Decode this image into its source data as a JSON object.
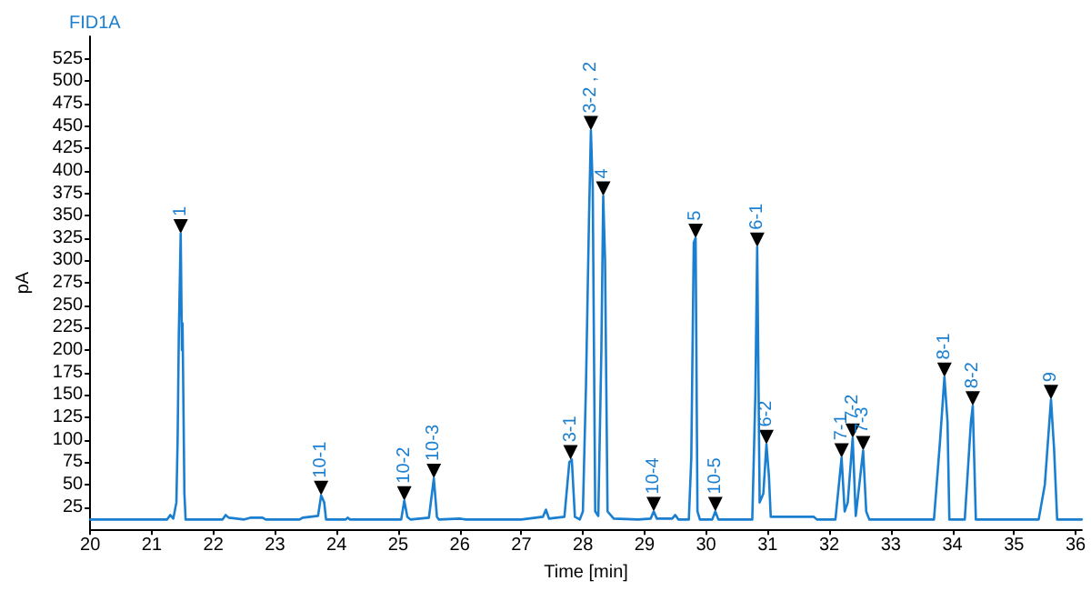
{
  "chart_data": {
    "type": "line",
    "title": "FID1A",
    "xlabel": "Time [min]",
    "ylabel": "pA",
    "xlim": [
      20,
      36.1
    ],
    "xticks": [
      20,
      21,
      22,
      23,
      24,
      25,
      26,
      27,
      28,
      29,
      30,
      31,
      32,
      33,
      34,
      35,
      36
    ],
    "ylim": [
      0,
      550
    ],
    "yticks": [
      25,
      50,
      75,
      100,
      125,
      150,
      175,
      200,
      225,
      250,
      275,
      300,
      325,
      350,
      375,
      400,
      425,
      450,
      475,
      500,
      525
    ],
    "grid": false,
    "marker": "none",
    "line_style": "solid",
    "series": [
      {
        "type": "scatter",
        "color": "#000000",
        "marker": "triangle",
        "x": [
          21.47,
          23.75,
          25.1,
          25.58,
          27.8,
          28.13,
          28.33,
          29.15,
          29.83,
          30.15,
          30.83,
          30.98,
          32.2,
          32.38,
          32.55,
          33.87,
          34.33,
          35.6
        ],
        "values": [
          338,
          46,
          40,
          65,
          86,
          453,
          380,
          28,
          333,
          28,
          323,
          103,
          88,
          110,
          96,
          178,
          146,
          153
        ]
      },
      {
        "color": "#1a7fd0",
        "x": [
          20,
          21.25,
          21.3,
          21.35,
          21.4,
          21.42,
          21.44,
          21.47,
          21.49,
          21.5,
          21.53,
          21.55,
          22.15,
          22.2,
          22.25,
          22.5,
          22.6,
          22.8,
          22.85,
          23.4,
          23.45,
          23.7,
          23.75,
          23.8,
          23.83,
          24.15,
          24.18,
          24.22,
          25.05,
          25.1,
          25.15,
          25.2,
          25.5,
          25.58,
          25.63,
          25.66,
          26.0,
          26.1,
          27.0,
          27.35,
          27.4,
          27.45,
          27.7,
          27.78,
          27.82,
          27.87,
          27.95,
          28.0,
          28.05,
          28.1,
          28.13,
          28.16,
          28.2,
          28.25,
          28.3,
          28.33,
          28.36,
          28.4,
          28.5,
          28.9,
          29.1,
          29.15,
          29.2,
          29.45,
          29.5,
          29.55,
          29.72,
          29.76,
          29.8,
          29.83,
          29.86,
          29.9,
          30.1,
          30.15,
          30.2,
          30.75,
          30.8,
          30.83,
          30.87,
          30.93,
          30.98,
          31.02,
          31.05,
          31.75,
          31.8,
          32.1,
          32.2,
          32.25,
          32.3,
          32.38,
          32.43,
          32.48,
          32.55,
          32.6,
          32.65,
          33.7,
          33.8,
          33.87,
          33.92,
          33.95,
          34.2,
          34.3,
          34.33,
          34.38,
          35.4,
          35.5,
          35.6,
          35.65,
          35.7,
          36.1
        ],
        "values": [
          11,
          11,
          16,
          12,
          30,
          100,
          220,
          330,
          200,
          230,
          40,
          11,
          11,
          16,
          13,
          11,
          13,
          13,
          11,
          11,
          13,
          15,
          38,
          30,
          11,
          11,
          13,
          11,
          11,
          32,
          14,
          11,
          13,
          57,
          14,
          11,
          12,
          11,
          11,
          14,
          22,
          12,
          14,
          75,
          78,
          14,
          11,
          20,
          160,
          350,
          445,
          380,
          20,
          15,
          200,
          372,
          300,
          20,
          12,
          11,
          12,
          20,
          12,
          12,
          16,
          11,
          11,
          80,
          320,
          325,
          20,
          11,
          11,
          20,
          11,
          11,
          150,
          315,
          30,
          40,
          95,
          60,
          14,
          14,
          11,
          11,
          80,
          20,
          30,
          102,
          15,
          45,
          88,
          20,
          11,
          11,
          100,
          170,
          120,
          11,
          11,
          120,
          138,
          11,
          11,
          50,
          145,
          90,
          11,
          11
        ]
      }
    ],
    "annotations": [
      {
        "text": "1",
        "x": 21.47,
        "y": 330
      },
      {
        "text": "10-1",
        "x": 23.75,
        "y": 38
      },
      {
        "text": "10-2",
        "x": 25.1,
        "y": 32
      },
      {
        "text": "10-3",
        "x": 25.58,
        "y": 57
      },
      {
        "text": "3-1",
        "x": 27.8,
        "y": 78
      },
      {
        "text": "3-2 , 2",
        "x": 28.13,
        "y": 445
      },
      {
        "text": "4",
        "x": 28.33,
        "y": 372
      },
      {
        "text": "10-4",
        "x": 29.15,
        "y": 20
      },
      {
        "text": "5",
        "x": 29.83,
        "y": 325
      },
      {
        "text": "10-5",
        "x": 30.15,
        "y": 20
      },
      {
        "text": "6-1",
        "x": 30.83,
        "y": 315
      },
      {
        "text": "6-2",
        "x": 30.98,
        "y": 95
      },
      {
        "text": "7-1",
        "x": 32.2,
        "y": 80
      },
      {
        "text": "7-2",
        "x": 32.38,
        "y": 102
      },
      {
        "text": "7-3",
        "x": 32.55,
        "y": 88
      },
      {
        "text": "8-1",
        "x": 33.87,
        "y": 170
      },
      {
        "text": "8-2",
        "x": 34.33,
        "y": 138
      },
      {
        "text": "9",
        "x": 35.6,
        "y": 145
      }
    ]
  }
}
